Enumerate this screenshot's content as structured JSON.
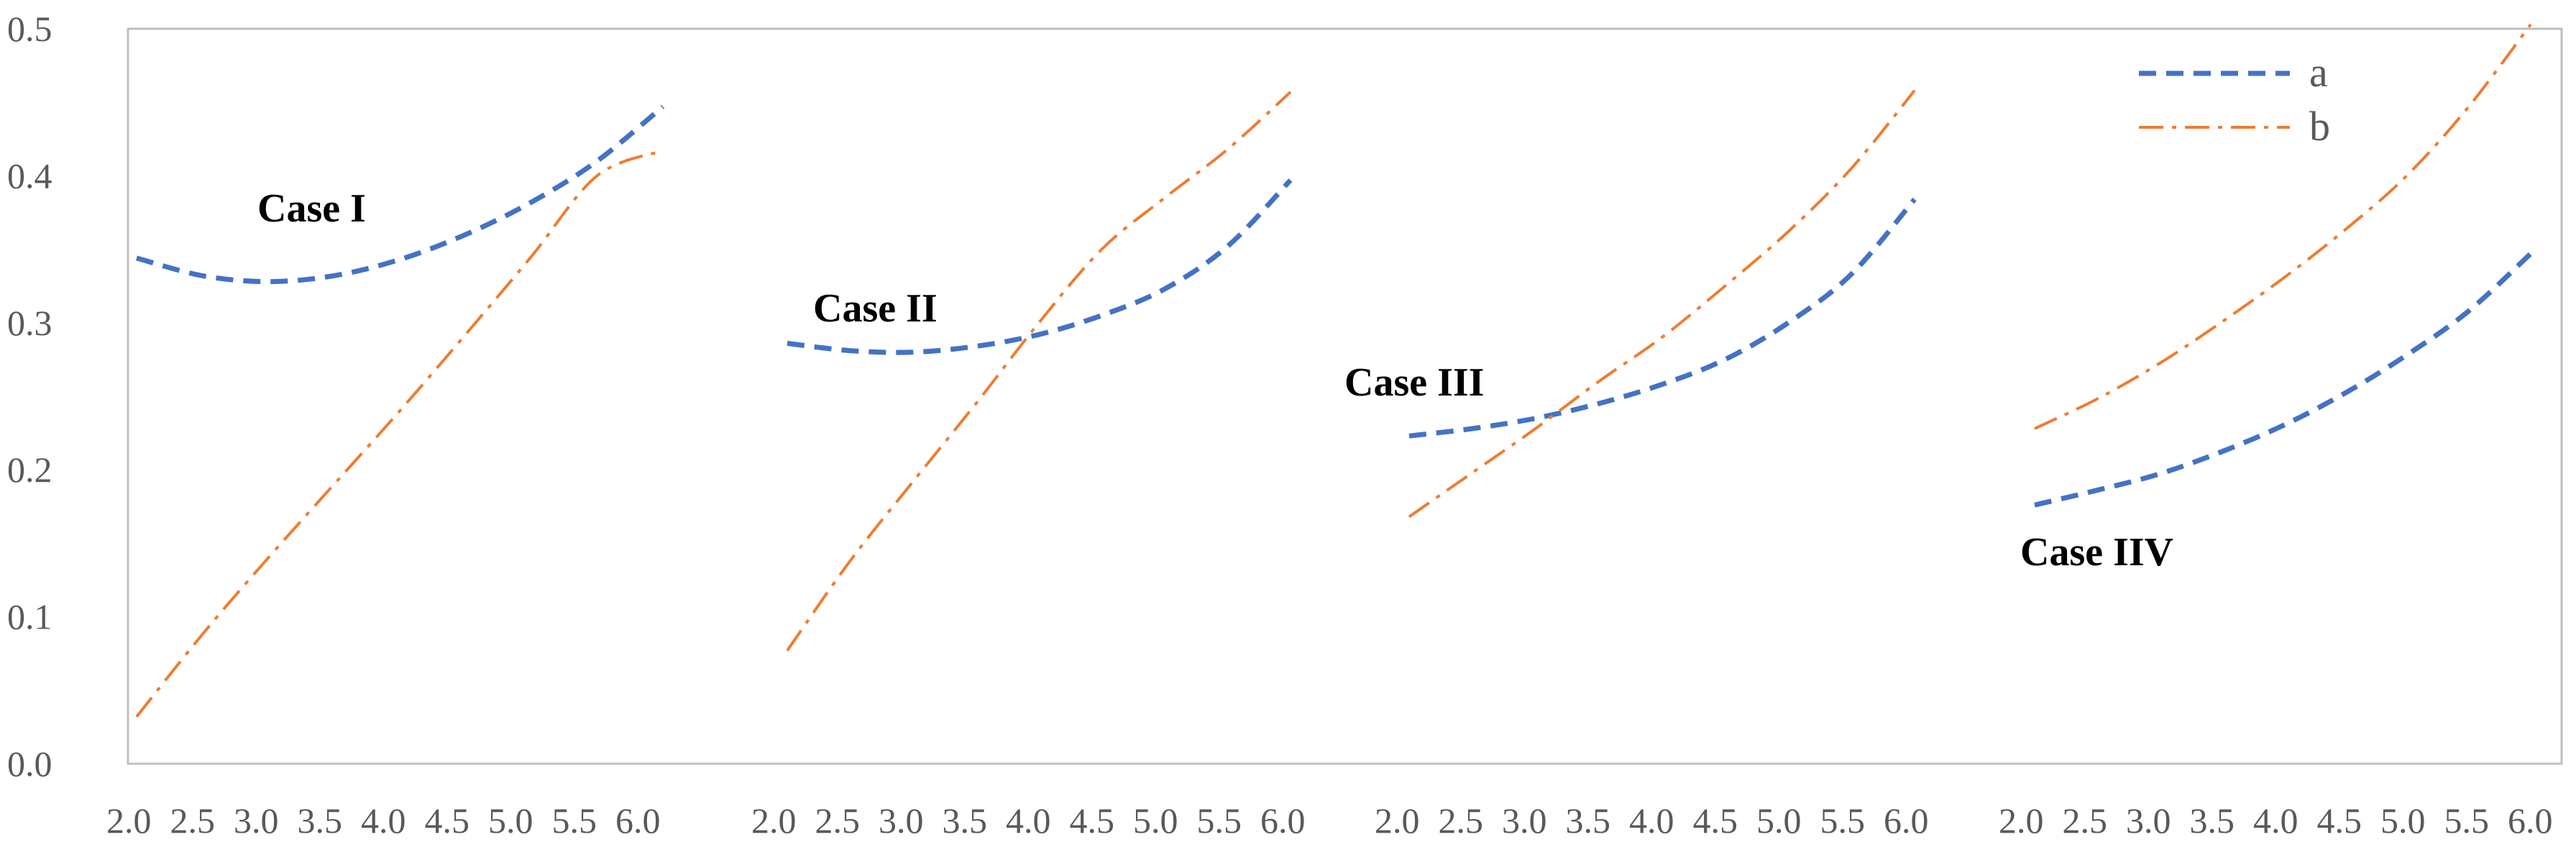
{
  "chart_data": {
    "type": "line",
    "ylim": [
      0,
      0.5
    ],
    "yticks": [
      "0.0",
      "0.1",
      "0.2",
      "0.3",
      "0.4",
      "0.5"
    ],
    "grid": false,
    "legend_position": "top-right",
    "legend": [
      {
        "name": "a",
        "color": "#4472C4",
        "dash": "dashed"
      },
      {
        "name": "b",
        "color": "#ED7D31",
        "dash": "dash-dot"
      }
    ],
    "panels": [
      {
        "label": "Case I",
        "x": [
          2.0,
          2.5,
          3.0,
          3.5,
          4.0,
          4.5,
          5.0,
          5.5,
          6.0
        ],
        "xticks": [
          "2.0",
          "2.5",
          "3.0",
          "3.5",
          "4.0",
          "4.5",
          "5.0",
          "5.5",
          "6.0"
        ],
        "series": [
          {
            "name": "a",
            "values": [
              0.344,
              0.332,
              0.328,
              0.332,
              0.343,
              0.36,
              0.382,
              0.41,
              0.447
            ]
          },
          {
            "name": "b",
            "values": [
              0.032,
              0.088,
              0.14,
              0.19,
              0.24,
              0.292,
              0.345,
              0.4,
              0.417
            ]
          }
        ]
      },
      {
        "label": "Case II",
        "x": [
          2.0,
          2.5,
          3.0,
          3.5,
          4.0,
          4.5,
          5.0,
          5.5,
          6.0
        ],
        "xticks": [
          "2.0",
          "2.5",
          "3.0",
          "3.5",
          "4.0",
          "4.5",
          "5.0",
          "5.5",
          "6.0"
        ],
        "series": [
          {
            "name": "a",
            "values": [
              0.286,
              0.281,
              0.28,
              0.284,
              0.292,
              0.305,
              0.323,
              0.352,
              0.397
            ]
          },
          {
            "name": "b",
            "values": [
              0.077,
              0.138,
              0.192,
              0.245,
              0.3,
              0.35,
              0.385,
              0.418,
              0.457
            ]
          }
        ]
      },
      {
        "label": "Case III",
        "x": [
          2.0,
          2.5,
          3.0,
          3.5,
          4.0,
          4.5,
          5.0,
          5.5,
          6.0
        ],
        "xticks": [
          "2.0",
          "2.5",
          "3.0",
          "3.5",
          "4.0",
          "4.5",
          "5.0",
          "5.5",
          "6.0"
        ],
        "series": [
          {
            "name": "a",
            "values": [
              0.223,
              0.228,
              0.235,
              0.245,
              0.258,
              0.275,
              0.3,
              0.333,
              0.384
            ]
          },
          {
            "name": "b",
            "values": [
              0.168,
              0.198,
              0.228,
              0.26,
              0.29,
              0.325,
              0.362,
              0.405,
              0.458
            ]
          }
        ]
      },
      {
        "label": "Case IIV",
        "x": [
          2.0,
          2.5,
          3.0,
          3.5,
          4.0,
          4.5,
          5.0,
          5.5,
          6.0
        ],
        "xticks": [
          "2.0",
          "2.5",
          "3.0",
          "3.5",
          "4.0",
          "4.5",
          "5.0",
          "5.5",
          "6.0"
        ],
        "series": [
          {
            "name": "a",
            "values": [
              0.176,
              0.186,
              0.197,
              0.212,
              0.23,
              0.252,
              0.278,
              0.308,
              0.347
            ]
          },
          {
            "name": "b",
            "values": [
              0.228,
              0.248,
              0.272,
              0.3,
              0.33,
              0.363,
              0.4,
              0.447,
              0.503
            ]
          }
        ]
      }
    ]
  }
}
